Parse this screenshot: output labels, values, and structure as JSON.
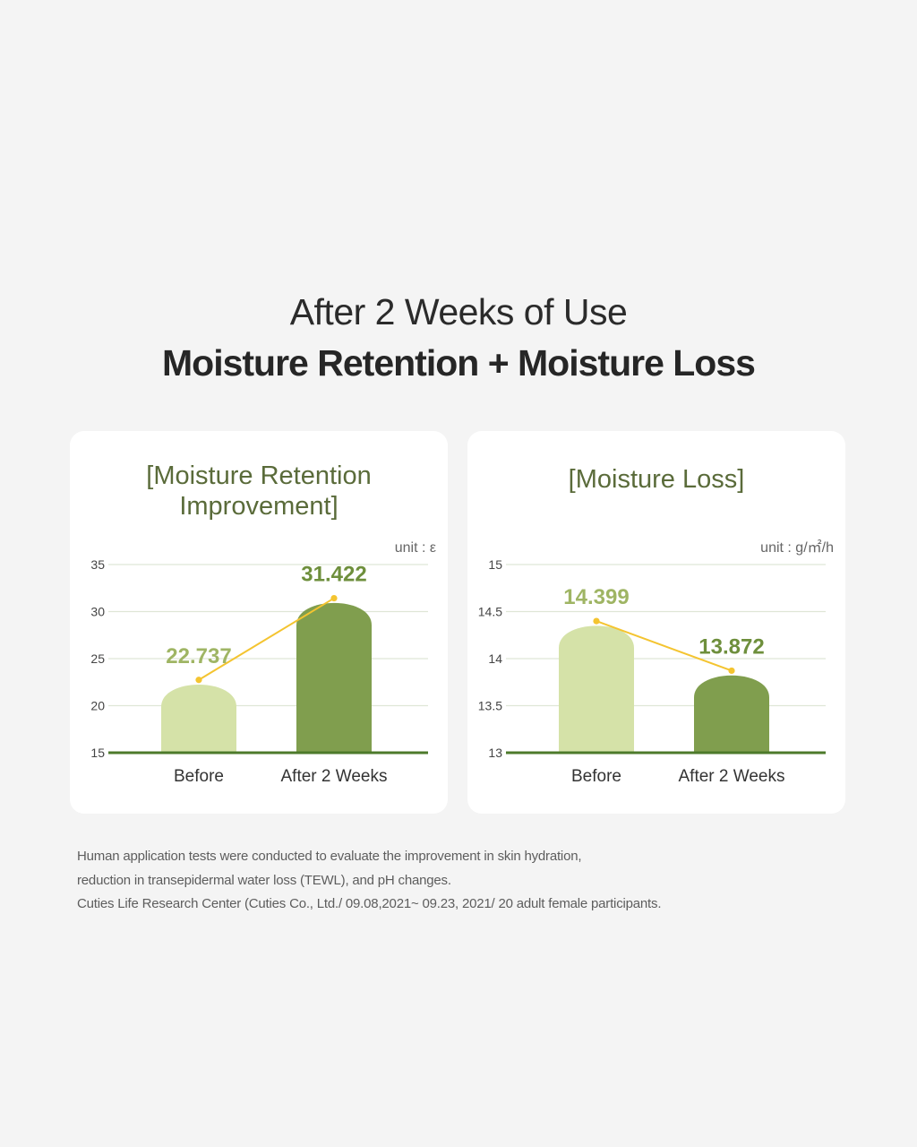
{
  "header": {
    "line1": "After 2 Weeks of Use",
    "line2": "Moisture Retention + Moisture Loss"
  },
  "colors": {
    "background": "#f4f4f4",
    "card": "#ffffff",
    "bar_before": "#d5e2a8",
    "bar_after": "#809e4e",
    "label_before": "#9fb564",
    "label_after": "#6e8f3c",
    "trend_line": "#f4c430",
    "axis_line": "#4c7a2b",
    "grid": "#dfe6d6",
    "title": "#5a6b3a"
  },
  "chart_data": [
    {
      "type": "bar",
      "title_lines": [
        "[Moisture Retention",
        "Improvement]"
      ],
      "unit": "unit : ε",
      "categories": [
        "Before",
        "After 2 Weeks"
      ],
      "values": [
        22.737,
        31.422
      ],
      "value_labels": [
        "22.737",
        "31.422"
      ],
      "ylim": [
        15,
        35
      ],
      "yticks": [
        15,
        20,
        25,
        30,
        35
      ],
      "ytick_labels": [
        "15",
        "20",
        "25",
        "30",
        "35"
      ],
      "grid": true,
      "trend_line": true
    },
    {
      "type": "bar",
      "title_lines": [
        "[Moisture Loss]"
      ],
      "unit": "unit : g/㎡/h",
      "categories": [
        "Before",
        "After 2 Weeks"
      ],
      "values": [
        14.399,
        13.872
      ],
      "value_labels": [
        "14.399",
        "13.872"
      ],
      "ylim": [
        13,
        15
      ],
      "yticks": [
        13,
        13.5,
        14,
        14.5,
        15
      ],
      "ytick_labels": [
        "13",
        "13.5",
        "14",
        "14.5",
        "15"
      ],
      "grid": true,
      "trend_line": true
    }
  ],
  "footnote": {
    "lines": [
      "Human application tests were conducted to evaluate the improvement in skin hydration,",
      "reduction in transepidermal water loss (TEWL), and pH changes.",
      "Cuties Life Research Center (Cuties Co., Ltd./ 09.08,2021~ 09.23, 2021/ 20 adult female participants."
    ]
  }
}
